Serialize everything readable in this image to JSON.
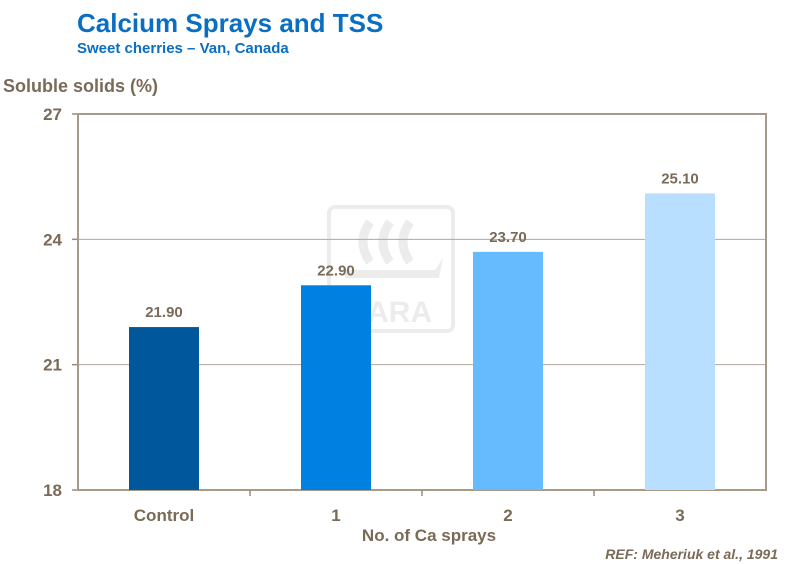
{
  "chart_data": {
    "type": "bar",
    "title": "Calcium Sprays and TSS",
    "subtitle": "Sweet cherries – Van, Canada",
    "xlabel": "No. of Ca sprays",
    "ylabel": "Soluble solids (%)",
    "categories": [
      "Control",
      "1",
      "2",
      "3"
    ],
    "values": [
      21.9,
      22.9,
      23.7,
      25.1
    ],
    "data_labels": [
      "21.90",
      "22.90",
      "23.70",
      "25.10"
    ],
    "colors": [
      "#00579b",
      "#0080e0",
      "#66bbff",
      "#b8dfff"
    ],
    "ylim": [
      18,
      27
    ],
    "yticks": [
      18,
      21,
      24,
      27
    ],
    "grid": true,
    "legend": "none",
    "reference": "REF: Meheriuk et al., 1991",
    "watermark": "YARA"
  }
}
